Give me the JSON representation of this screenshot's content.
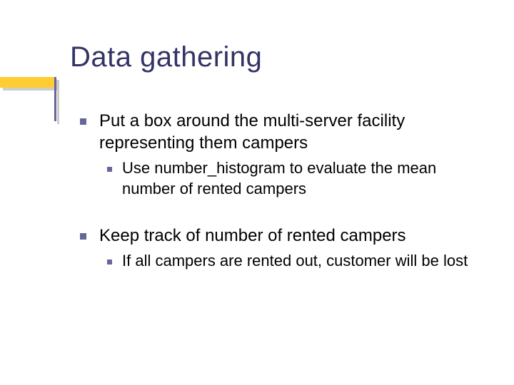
{
  "slide": {
    "title": "Data gathering",
    "background_color": "#ffffff",
    "title_color": "#333366",
    "title_fontsize": 40,
    "accent_bar_color": "#ffcc33",
    "vline_color": "#666699",
    "bullet_color": "#666699",
    "body_text_color": "#000000",
    "body_fontsize_l1": 24,
    "body_fontsize_l2": 22,
    "bullets": [
      {
        "level": 1,
        "text": "Put a box around the multi-server facility representing them campers",
        "children": [
          {
            "level": 2,
            "text": "Use number_histogram to evaluate the mean number of rented campers"
          }
        ]
      },
      {
        "level": 1,
        "text": "Keep track of number of rented campers",
        "children": [
          {
            "level": 2,
            "text": "If all campers are rented out, customer will be lost"
          }
        ]
      }
    ]
  }
}
